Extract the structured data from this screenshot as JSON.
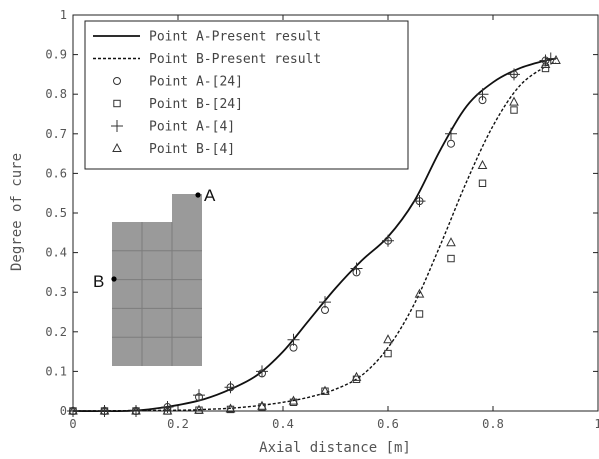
{
  "chart_data": {
    "type": "line",
    "title": "",
    "xlabel": "Axial distance [m]",
    "ylabel": "Degree of cure",
    "xlim": [
      0,
      1
    ],
    "ylim": [
      0,
      1
    ],
    "xticks": [
      "0",
      "0.2",
      "0.4",
      "0.6",
      "0.8",
      "1"
    ],
    "yticks": [
      "0",
      "0.1",
      "0.2",
      "0.3",
      "0.4",
      "0.5",
      "0.6",
      "0.7",
      "0.8",
      "0.9",
      "1"
    ],
    "grid": false,
    "legend_position": "top-left",
    "series": [
      {
        "name": "Point A-Present result",
        "style": "solid-line",
        "x": [
          0,
          0.1,
          0.15,
          0.2,
          0.25,
          0.3,
          0.35,
          0.4,
          0.45,
          0.5,
          0.55,
          0.6,
          0.65,
          0.7,
          0.75,
          0.8,
          0.85,
          0.9,
          0.92
        ],
        "y": [
          0.0,
          0.0,
          0.005,
          0.015,
          0.03,
          0.055,
          0.09,
          0.15,
          0.23,
          0.31,
          0.38,
          0.44,
          0.53,
          0.66,
          0.77,
          0.83,
          0.865,
          0.885,
          0.89
        ]
      },
      {
        "name": "Point B-Present result",
        "style": "dashed-line",
        "x": [
          0,
          0.2,
          0.25,
          0.3,
          0.35,
          0.4,
          0.45,
          0.5,
          0.55,
          0.6,
          0.65,
          0.7,
          0.75,
          0.8,
          0.85,
          0.9,
          0.92
        ],
        "y": [
          0.0,
          0.002,
          0.004,
          0.007,
          0.013,
          0.022,
          0.035,
          0.055,
          0.09,
          0.16,
          0.27,
          0.42,
          0.58,
          0.72,
          0.82,
          0.87,
          0.88
        ]
      },
      {
        "name": "Point A-[24]",
        "marker": "circle",
        "x": [
          0,
          0.06,
          0.12,
          0.18,
          0.24,
          0.3,
          0.36,
          0.42,
          0.48,
          0.54,
          0.6,
          0.66,
          0.72,
          0.78,
          0.84,
          0.9
        ],
        "y": [
          0.0,
          0.0,
          0.0,
          0.01,
          0.035,
          0.06,
          0.095,
          0.16,
          0.255,
          0.35,
          0.43,
          0.53,
          0.675,
          0.785,
          0.85,
          0.885
        ]
      },
      {
        "name": "Point B-[24]",
        "marker": "square",
        "x": [
          0,
          0.06,
          0.12,
          0.18,
          0.24,
          0.3,
          0.36,
          0.42,
          0.48,
          0.54,
          0.6,
          0.66,
          0.72,
          0.78,
          0.84,
          0.9
        ],
        "y": [
          0.0,
          0.0,
          0.0,
          0.0,
          0.002,
          0.004,
          0.01,
          0.022,
          0.05,
          0.08,
          0.145,
          0.245,
          0.385,
          0.575,
          0.76,
          0.865
        ]
      },
      {
        "name": "Point A-[4]",
        "marker": "plus",
        "x": [
          0,
          0.06,
          0.12,
          0.18,
          0.24,
          0.3,
          0.36,
          0.42,
          0.48,
          0.54,
          0.6,
          0.66,
          0.72,
          0.78,
          0.84,
          0.9,
          0.91
        ],
        "y": [
          0.0,
          0.0,
          0.0,
          0.01,
          0.04,
          0.06,
          0.1,
          0.18,
          0.275,
          0.36,
          0.43,
          0.53,
          0.7,
          0.8,
          0.85,
          0.885,
          0.89
        ]
      },
      {
        "name": "Point B-[4]",
        "marker": "triangle",
        "x": [
          0,
          0.06,
          0.12,
          0.18,
          0.24,
          0.3,
          0.36,
          0.42,
          0.48,
          0.54,
          0.6,
          0.66,
          0.72,
          0.78,
          0.84,
          0.9,
          0.92
        ],
        "y": [
          0.0,
          0.0,
          0.0,
          0.0,
          0.002,
          0.005,
          0.012,
          0.025,
          0.05,
          0.085,
          0.18,
          0.295,
          0.425,
          0.62,
          0.78,
          0.875,
          0.885
        ]
      }
    ],
    "inset": {
      "labels": [
        "A",
        "B"
      ],
      "fill_color": "#9a9a9a",
      "grid_color": "#7c7c7c"
    }
  }
}
